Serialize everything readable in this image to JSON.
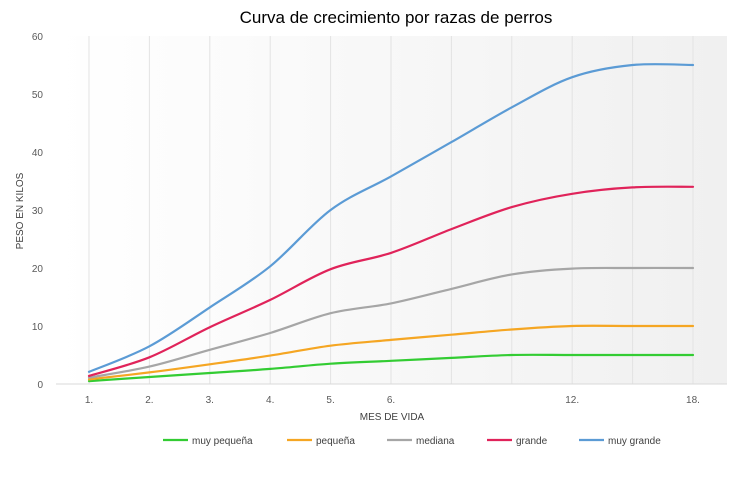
{
  "chart_data": {
    "type": "line",
    "title": "Curva de crecimiento por razas de perros",
    "xlabel": "MES DE VIDA",
    "ylabel": "PESO EN KILOS",
    "ylim": [
      0,
      60
    ],
    "yticks": [
      0,
      10,
      20,
      30,
      40,
      50,
      60
    ],
    "categories": [
      "1.",
      "2.",
      "3.",
      "4.",
      "5.",
      "6.",
      "",
      "",
      "12.",
      "",
      "18."
    ],
    "grid": "vertical",
    "legend": "bottom",
    "series": [
      {
        "name": "muy pequeña",
        "color": "#33CC33",
        "values": [
          0.5,
          1.2,
          1.9,
          2.6,
          3.5,
          4.0,
          4.5,
          5.0,
          5.0,
          5.0,
          5.0
        ]
      },
      {
        "name": "pequeña",
        "color": "#F5A623",
        "values": [
          0.8,
          2.0,
          3.4,
          4.9,
          6.6,
          7.6,
          8.5,
          9.4,
          10.0,
          10.0,
          10.0
        ]
      },
      {
        "name": "mediana",
        "color": "#A6A6A6",
        "values": [
          1.1,
          3.0,
          5.9,
          8.8,
          12.2,
          13.9,
          16.4,
          18.9,
          19.9,
          20.0,
          20.0
        ]
      },
      {
        "name": "grande",
        "color": "#E0235A",
        "values": [
          1.4,
          4.6,
          9.8,
          14.5,
          19.8,
          22.6,
          26.7,
          30.5,
          32.8,
          33.9,
          34.0
        ]
      },
      {
        "name": "muy grande",
        "color": "#5B9BD5",
        "values": [
          2.1,
          6.5,
          13.2,
          20.3,
          30.0,
          35.8,
          41.7,
          47.7,
          52.9,
          55.0,
          55.0
        ]
      }
    ]
  }
}
